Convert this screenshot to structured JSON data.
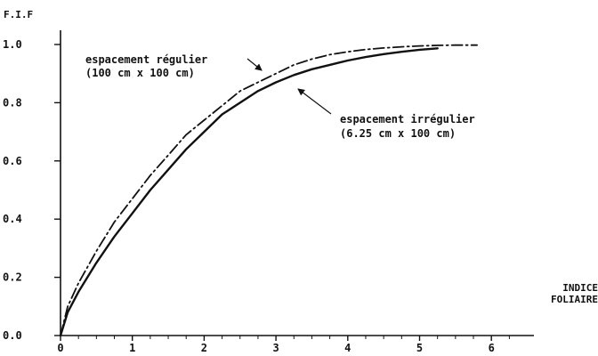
{
  "chart_data": {
    "type": "line",
    "title": "",
    "ylabel": "F.I.F",
    "xlabel_lines": [
      "INDICE",
      "FOLIAIRE"
    ],
    "xlim": [
      0,
      6.5
    ],
    "ylim": [
      0,
      1.0
    ],
    "x_ticks": [
      0,
      1,
      2,
      3,
      4,
      5,
      6
    ],
    "y_ticks": [
      "0.0",
      "0.2",
      "0.4",
      "0.6",
      "0.8",
      "1.0"
    ],
    "grid": false,
    "series": [
      {
        "name": "espacement régulier (100 cm x 100 cm)",
        "style": "dash-dot",
        "color": "#111111",
        "x": [
          0,
          0.1,
          0.25,
          0.5,
          0.75,
          1.0,
          1.25,
          1.5,
          1.75,
          2.0,
          2.25,
          2.5,
          2.75,
          3.0,
          3.25,
          3.5,
          3.75,
          4.0,
          4.25,
          4.5,
          4.75,
          5.0,
          5.25,
          5.5,
          5.8
        ],
        "y": [
          0,
          0.1,
          0.18,
          0.29,
          0.39,
          0.47,
          0.55,
          0.62,
          0.69,
          0.74,
          0.79,
          0.84,
          0.87,
          0.9,
          0.93,
          0.95,
          0.965,
          0.975,
          0.983,
          0.988,
          0.992,
          0.995,
          0.997,
          0.998,
          0.998
        ]
      },
      {
        "name": "espacement irrégulier (6.25 cm x 100 cm)",
        "style": "solid",
        "color": "#111111",
        "x": [
          0,
          0.1,
          0.25,
          0.5,
          0.75,
          1.0,
          1.25,
          1.5,
          1.75,
          2.0,
          2.25,
          2.5,
          2.75,
          3.0,
          3.25,
          3.5,
          3.75,
          4.0,
          4.25,
          4.5,
          4.75,
          5.0,
          5.25
        ],
        "y": [
          0,
          0.08,
          0.15,
          0.25,
          0.34,
          0.42,
          0.5,
          0.57,
          0.64,
          0.7,
          0.76,
          0.8,
          0.84,
          0.87,
          0.895,
          0.915,
          0.93,
          0.945,
          0.957,
          0.967,
          0.975,
          0.982,
          0.987
        ]
      }
    ],
    "annotations": [
      {
        "lines": [
          "espacement régulier",
          "(100 cm x 100 cm)"
        ],
        "arrow_to": [
          2.8,
          0.88
        ]
      },
      {
        "lines": [
          "espacement irrégulier",
          "(6.25 cm x 100 cm)"
        ],
        "arrow_to": [
          3.45,
          0.91
        ]
      }
    ]
  }
}
